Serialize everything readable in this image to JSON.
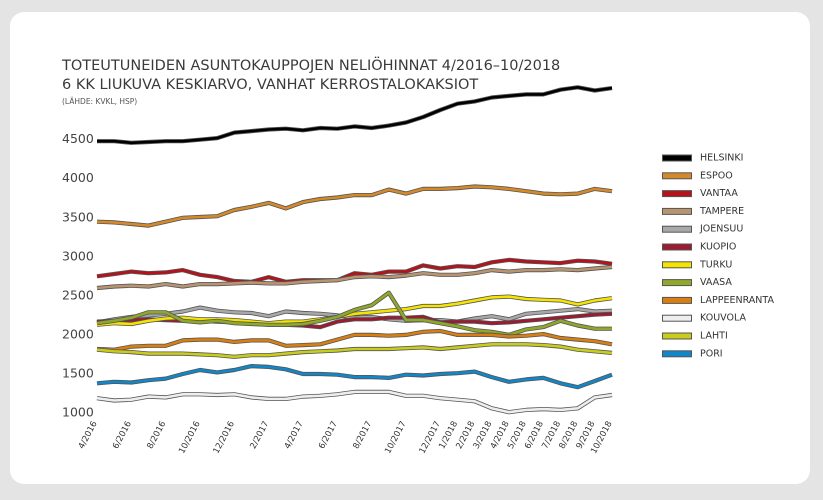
{
  "chart_data": {
    "type": "line",
    "title": "TOTEUTUNEIDEN ASUNTOKAUPPOJEN NELIÖHINNAT 4/2016–10/2018",
    "subtitle": "6 KK LIUKUVA KESKIARVO, VANHAT KERROSTALOKAKSIOT",
    "source": "(LÄHDE: KVKL, HSP)",
    "categories": [
      "4/2016",
      null,
      "6/2016",
      null,
      "8/2016",
      null,
      "10/2016",
      null,
      "12/2016",
      null,
      "2/2017",
      null,
      "4/2017",
      null,
      "6/2017",
      null,
      "8/2017",
      null,
      "10/2017",
      null,
      "12/2017",
      "1/2018",
      "2/2018",
      "3/2018",
      "4/2018",
      "5/2018",
      "6/2018",
      "7/2018",
      "8/2018",
      "9/2018",
      "10/2018"
    ],
    "category_colors": [
      "#555555",
      "#555555",
      "#555555",
      "#555555",
      "#555555",
      "#555555",
      "#555555",
      "#555555",
      "#555555",
      "#555555",
      "#555555",
      "#555555",
      "#555555",
      "#555555",
      "#555555",
      "#555555",
      "#555555",
      "#555555",
      "#555555",
      "#555555",
      "#555555",
      "#d97f12",
      "#d97f12",
      "#d97f12",
      "#d97f12",
      "#d97f12",
      "#d97f12",
      "#d97f12",
      "#d97f12",
      "#d97f12",
      "#d97f12"
    ],
    "ylim": [
      1000,
      5200
    ],
    "yticks": [
      1000,
      1500,
      2000,
      2500,
      3000,
      3500,
      4000,
      4500
    ],
    "grid": false,
    "legend": "right",
    "series": [
      {
        "name": "HELSINKI",
        "color": "#000000",
        "values": [
          4480,
          4480,
          4460,
          4470,
          4480,
          4480,
          4500,
          4520,
          4590,
          4610,
          4630,
          4640,
          4620,
          4650,
          4640,
          4670,
          4650,
          4680,
          4720,
          4790,
          4880,
          4960,
          4990,
          5040,
          5060,
          5080,
          5080,
          5140,
          5170,
          5130,
          5160
        ]
      },
      {
        "name": "ESPOO",
        "color": "#d4892a",
        "values": [
          3450,
          3440,
          3420,
          3400,
          3450,
          3500,
          3510,
          3520,
          3600,
          3640,
          3690,
          3620,
          3700,
          3740,
          3760,
          3790,
          3790,
          3860,
          3810,
          3870,
          3870,
          3880,
          3900,
          3890,
          3870,
          3840,
          3810,
          3800,
          3810,
          3870,
          3840
        ]
      },
      {
        "name": "VANTAA",
        "color": "#b5121b",
        "values": [
          2750,
          2780,
          2810,
          2790,
          2800,
          2830,
          2770,
          2740,
          2690,
          2680,
          2740,
          2680,
          2700,
          2700,
          2700,
          2790,
          2770,
          2810,
          2810,
          2890,
          2850,
          2880,
          2870,
          2930,
          2960,
          2940,
          2930,
          2920,
          2950,
          2940,
          2910
        ]
      },
      {
        "name": "TAMPERE",
        "color": "#b89570",
        "values": [
          2600,
          2620,
          2630,
          2620,
          2650,
          2620,
          2650,
          2650,
          2660,
          2670,
          2660,
          2660,
          2680,
          2690,
          2700,
          2740,
          2750,
          2740,
          2760,
          2790,
          2770,
          2770,
          2790,
          2830,
          2810,
          2830,
          2830,
          2840,
          2830,
          2850,
          2870
        ]
      },
      {
        "name": "JOENSUU",
        "color": "#a8a8a8",
        "values": [
          2160,
          2200,
          2230,
          2250,
          2270,
          2300,
          2350,
          2310,
          2290,
          2280,
          2240,
          2300,
          2280,
          2270,
          2250,
          2220,
          2230,
          2200,
          2180,
          2190,
          2190,
          2170,
          2210,
          2240,
          2200,
          2270,
          2290,
          2310,
          2330,
          2300,
          2310
        ]
      },
      {
        "name": "KUOPIO",
        "color": "#9b1b30",
        "values": [
          2170,
          2180,
          2190,
          2200,
          2190,
          2180,
          2180,
          2170,
          2160,
          2150,
          2130,
          2130,
          2120,
          2100,
          2170,
          2200,
          2200,
          2220,
          2220,
          2230,
          2160,
          2170,
          2170,
          2150,
          2160,
          2180,
          2200,
          2220,
          2240,
          2260,
          2270
        ]
      },
      {
        "name": "TURKU",
        "color": "#f5e400",
        "values": [
          2130,
          2150,
          2140,
          2180,
          2210,
          2220,
          2200,
          2200,
          2190,
          2170,
          2150,
          2170,
          2170,
          2200,
          2230,
          2270,
          2290,
          2310,
          2330,
          2370,
          2370,
          2400,
          2440,
          2480,
          2490,
          2460,
          2450,
          2440,
          2390,
          2440,
          2470
        ]
      },
      {
        "name": "VAASA",
        "color": "#8fa82a",
        "values": [
          2150,
          2180,
          2220,
          2290,
          2290,
          2180,
          2160,
          2180,
          2150,
          2140,
          2130,
          2130,
          2140,
          2180,
          2230,
          2320,
          2380,
          2540,
          2190,
          2190,
          2150,
          2110,
          2060,
          2040,
          2000,
          2070,
          2100,
          2180,
          2120,
          2080,
          2080
        ]
      },
      {
        "name": "LAPPEENRANTA",
        "color": "#d97f12",
        "values": [
          1820,
          1810,
          1850,
          1860,
          1860,
          1930,
          1940,
          1940,
          1910,
          1930,
          1930,
          1860,
          1870,
          1880,
          1940,
          2000,
          2000,
          1990,
          2000,
          2040,
          2050,
          2000,
          2000,
          2000,
          1980,
          1990,
          2010,
          1960,
          1940,
          1920,
          1880
        ]
      },
      {
        "name": "KOUVOLA",
        "color": "#eeeeee",
        "values": [
          1190,
          1160,
          1170,
          1210,
          1200,
          1240,
          1240,
          1230,
          1240,
          1200,
          1180,
          1180,
          1210,
          1220,
          1240,
          1270,
          1270,
          1270,
          1220,
          1220,
          1190,
          1170,
          1150,
          1060,
          1010,
          1040,
          1050,
          1040,
          1060,
          1200,
          1230
        ]
      },
      {
        "name": "LAHTI",
        "color": "#c8cc1a",
        "values": [
          1810,
          1790,
          1780,
          1760,
          1760,
          1760,
          1750,
          1740,
          1720,
          1740,
          1740,
          1760,
          1780,
          1790,
          1800,
          1820,
          1820,
          1820,
          1830,
          1840,
          1820,
          1840,
          1860,
          1880,
          1880,
          1880,
          1870,
          1850,
          1810,
          1790,
          1770
        ]
      },
      {
        "name": "PORI",
        "color": "#1186c8",
        "values": [
          1380,
          1400,
          1390,
          1420,
          1440,
          1500,
          1550,
          1520,
          1550,
          1600,
          1590,
          1560,
          1500,
          1500,
          1490,
          1460,
          1460,
          1450,
          1490,
          1480,
          1500,
          1510,
          1530,
          1460,
          1400,
          1430,
          1450,
          1380,
          1330,
          1410,
          1490
        ]
      }
    ]
  }
}
